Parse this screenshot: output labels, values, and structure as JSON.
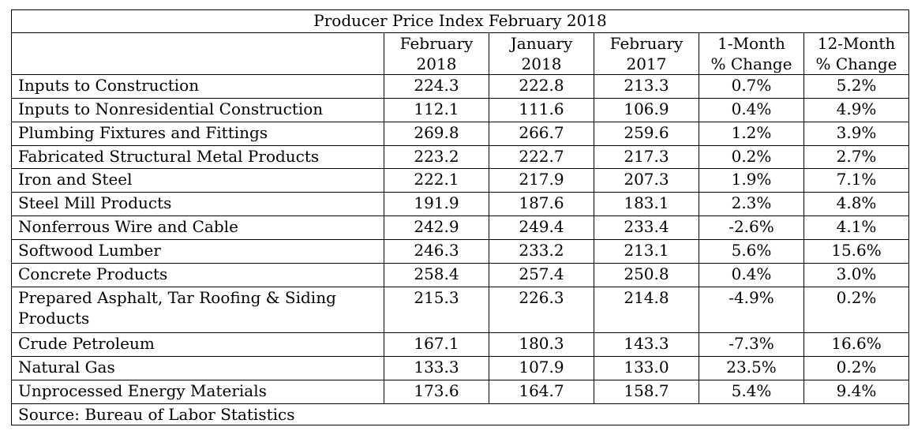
{
  "table": {
    "title": "Producer Price Index February 2018",
    "columns": [
      {
        "line1": "February",
        "line2": "2018"
      },
      {
        "line1": "January",
        "line2": "2018"
      },
      {
        "line1": "February",
        "line2": "2017"
      },
      {
        "line1": "1-Month",
        "line2": "% Change"
      },
      {
        "line1": "12-Month",
        "line2": "% Change"
      }
    ],
    "rows": [
      {
        "label": "Inputs to Construction",
        "values": [
          "224.3",
          "222.8",
          "213.3",
          "0.7%",
          "5.2%"
        ]
      },
      {
        "label": "Inputs to Nonresidential Construction",
        "values": [
          "112.1",
          "111.6",
          "106.9",
          "0.4%",
          "4.9%"
        ]
      },
      {
        "label": "Plumbing Fixtures and Fittings",
        "values": [
          "269.8",
          "266.7",
          "259.6",
          "1.2%",
          "3.9%"
        ]
      },
      {
        "label": "Fabricated Structural Metal Products",
        "values": [
          "223.2",
          "222.7",
          "217.3",
          "0.2%",
          "2.7%"
        ]
      },
      {
        "label": "Iron and Steel",
        "values": [
          "222.1",
          "217.9",
          "207.3",
          "1.9%",
          "7.1%"
        ]
      },
      {
        "label": "Steel Mill Products",
        "values": [
          "191.9",
          "187.6",
          "183.1",
          "2.3%",
          "4.8%"
        ]
      },
      {
        "label": "Nonferrous Wire and Cable",
        "values": [
          "242.9",
          "249.4",
          "233.4",
          "-2.6%",
          "4.1%"
        ]
      },
      {
        "label": "Softwood Lumber",
        "values": [
          "246.3",
          "233.2",
          "213.1",
          "5.6%",
          "15.6%"
        ]
      },
      {
        "label": "Concrete Products",
        "values": [
          "258.4",
          "257.4",
          "250.8",
          "0.4%",
          "3.0%"
        ]
      },
      {
        "label": "Prepared Asphalt, Tar Roofing & Siding Products",
        "values": [
          "215.3",
          "226.3",
          "214.8",
          "-4.9%",
          "0.2%"
        ]
      },
      {
        "label": "Crude Petroleum",
        "values": [
          "167.1",
          "180.3",
          "143.3",
          "-7.3%",
          "16.6%"
        ]
      },
      {
        "label": "Natural Gas",
        "values": [
          "133.3",
          "107.9",
          "133.0",
          "23.5%",
          "0.2%"
        ]
      },
      {
        "label": "Unprocessed Energy Materials",
        "values": [
          "173.6",
          "164.7",
          "158.7",
          "5.4%",
          "9.4%"
        ]
      }
    ],
    "source": "Source: Bureau of Labor Statistics"
  }
}
